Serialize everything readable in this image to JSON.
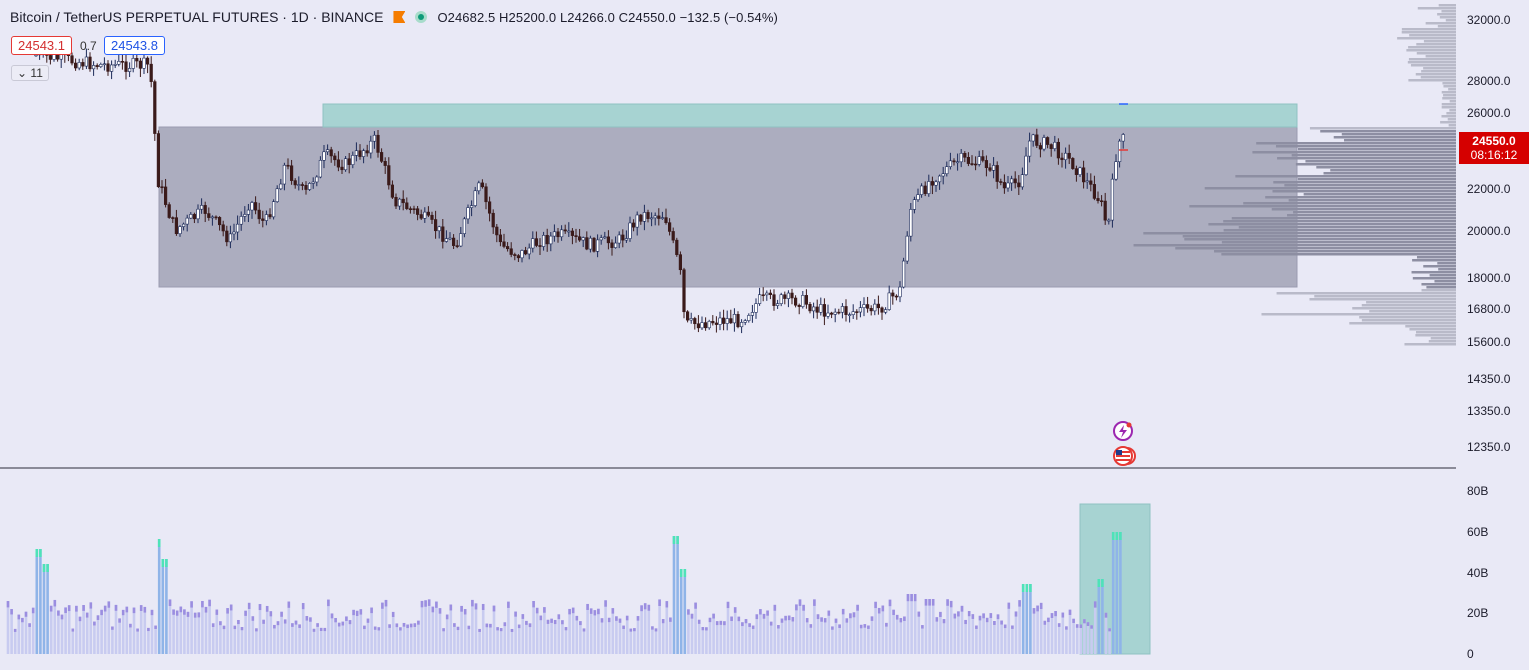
{
  "header": {
    "symbol": "Bitcoin / TetherUS PERPETUAL FUTURES · 1D · BINANCE",
    "ohlc": "O24682.5  H25200.0  L24266.0  C24550.0  −132.5 (−0.54%)"
  },
  "quotes": {
    "sell": "24543.1",
    "spread": "0.7",
    "buy": "24543.8"
  },
  "indicators_collapse": {
    "icon": "chevron-down-icon",
    "count": "11"
  },
  "price_axis": {
    "labels": [
      "32000.0",
      "28000.0",
      "26000.0",
      "22000.0",
      "20000.0",
      "18000.0",
      "16800.0",
      "15600.0",
      "14350.0",
      "13350.0",
      "12350.0"
    ],
    "current_price": "24550.0",
    "countdown": "08:16:12"
  },
  "volume_axis": {
    "labels": [
      "80B",
      "60B",
      "40B",
      "20B",
      "0"
    ]
  },
  "colors": {
    "background": "#e9e9f6",
    "candle_up": "#1c2a59",
    "candle_down": "#3a1a1a",
    "range_box": "#acadbf",
    "supply_zone": "#a7d3d2",
    "volume_profile": "#b9bac9",
    "price_label": "#d50000"
  },
  "events": [
    {
      "icon": "lightning-icon"
    },
    {
      "icon": "us-flag-icon"
    }
  ]
}
